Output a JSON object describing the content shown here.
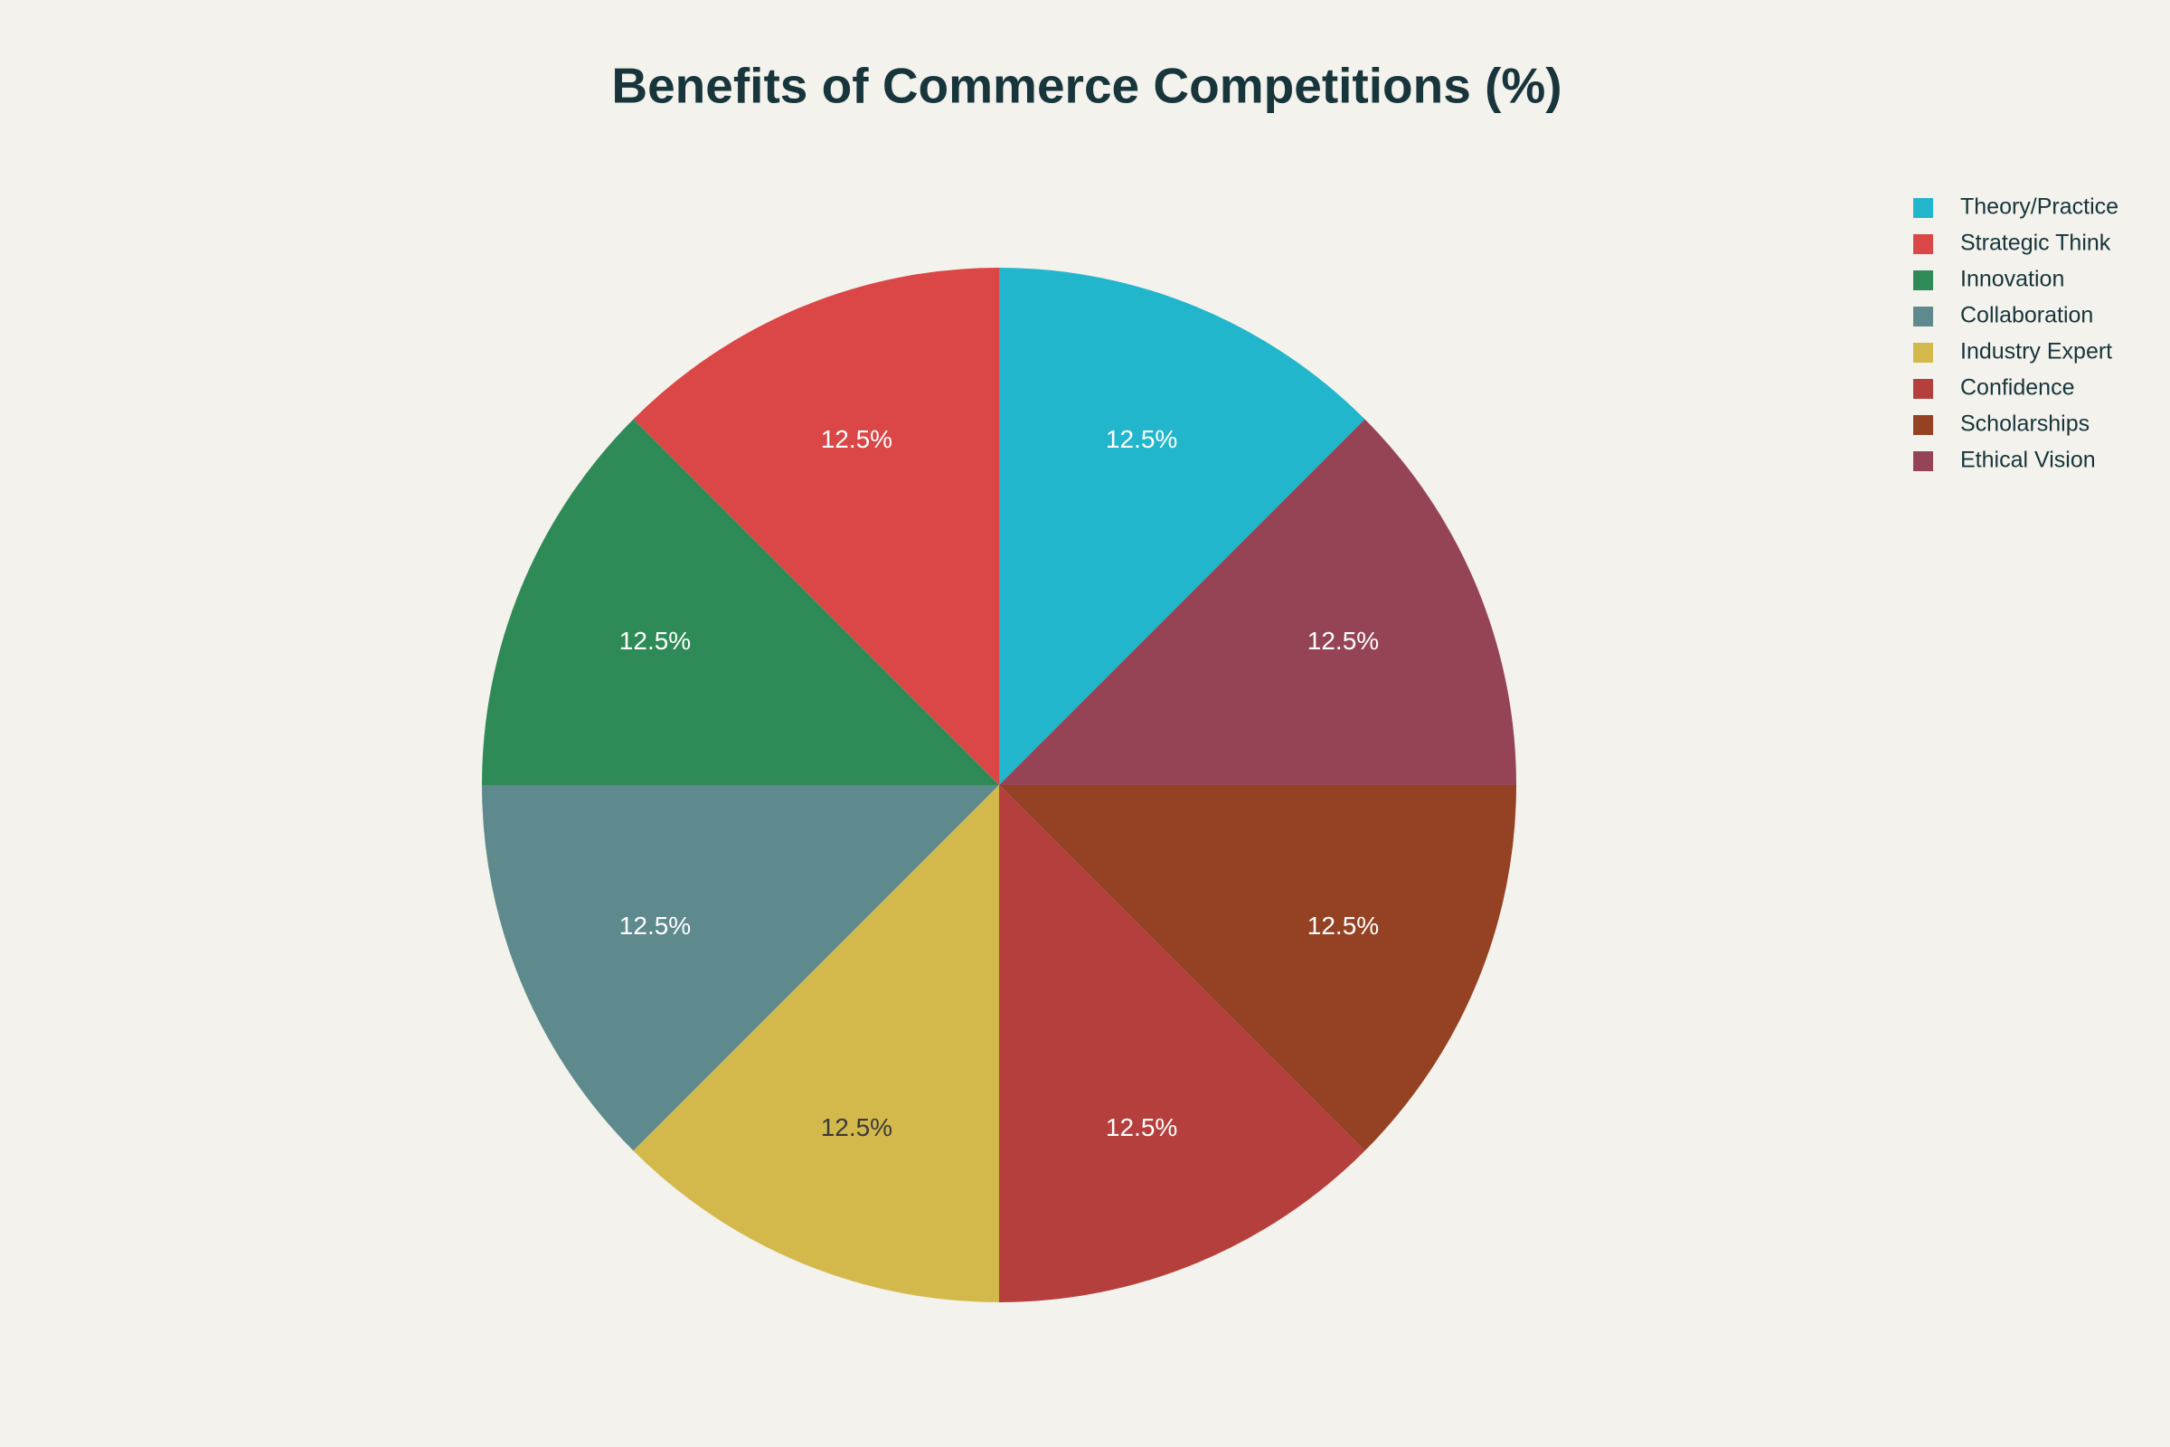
{
  "chart_data": {
    "type": "pie",
    "title": "Benefits of Commerce Competitions (%)",
    "categories": [
      "Theory/Practice",
      "Strategic Think",
      "Innovation",
      "Collaboration",
      "Industry Expert",
      "Confidence",
      "Scholarships",
      "Ethical Vision"
    ],
    "values": [
      12.5,
      12.5,
      12.5,
      12.5,
      12.5,
      12.5,
      12.5,
      12.5
    ],
    "value_labels": [
      "12.5%",
      "12.5%",
      "12.5%",
      "12.5%",
      "12.5%",
      "12.5%",
      "12.5%",
      "12.5%"
    ],
    "colors": [
      "#21b6cb",
      "#db4646",
      "#2e8b57",
      "#5e8a8d",
      "#d3b94c",
      "#b53f3d",
      "#944223",
      "#954456"
    ],
    "direction": "counterclockwise",
    "legend": "top-right"
  }
}
